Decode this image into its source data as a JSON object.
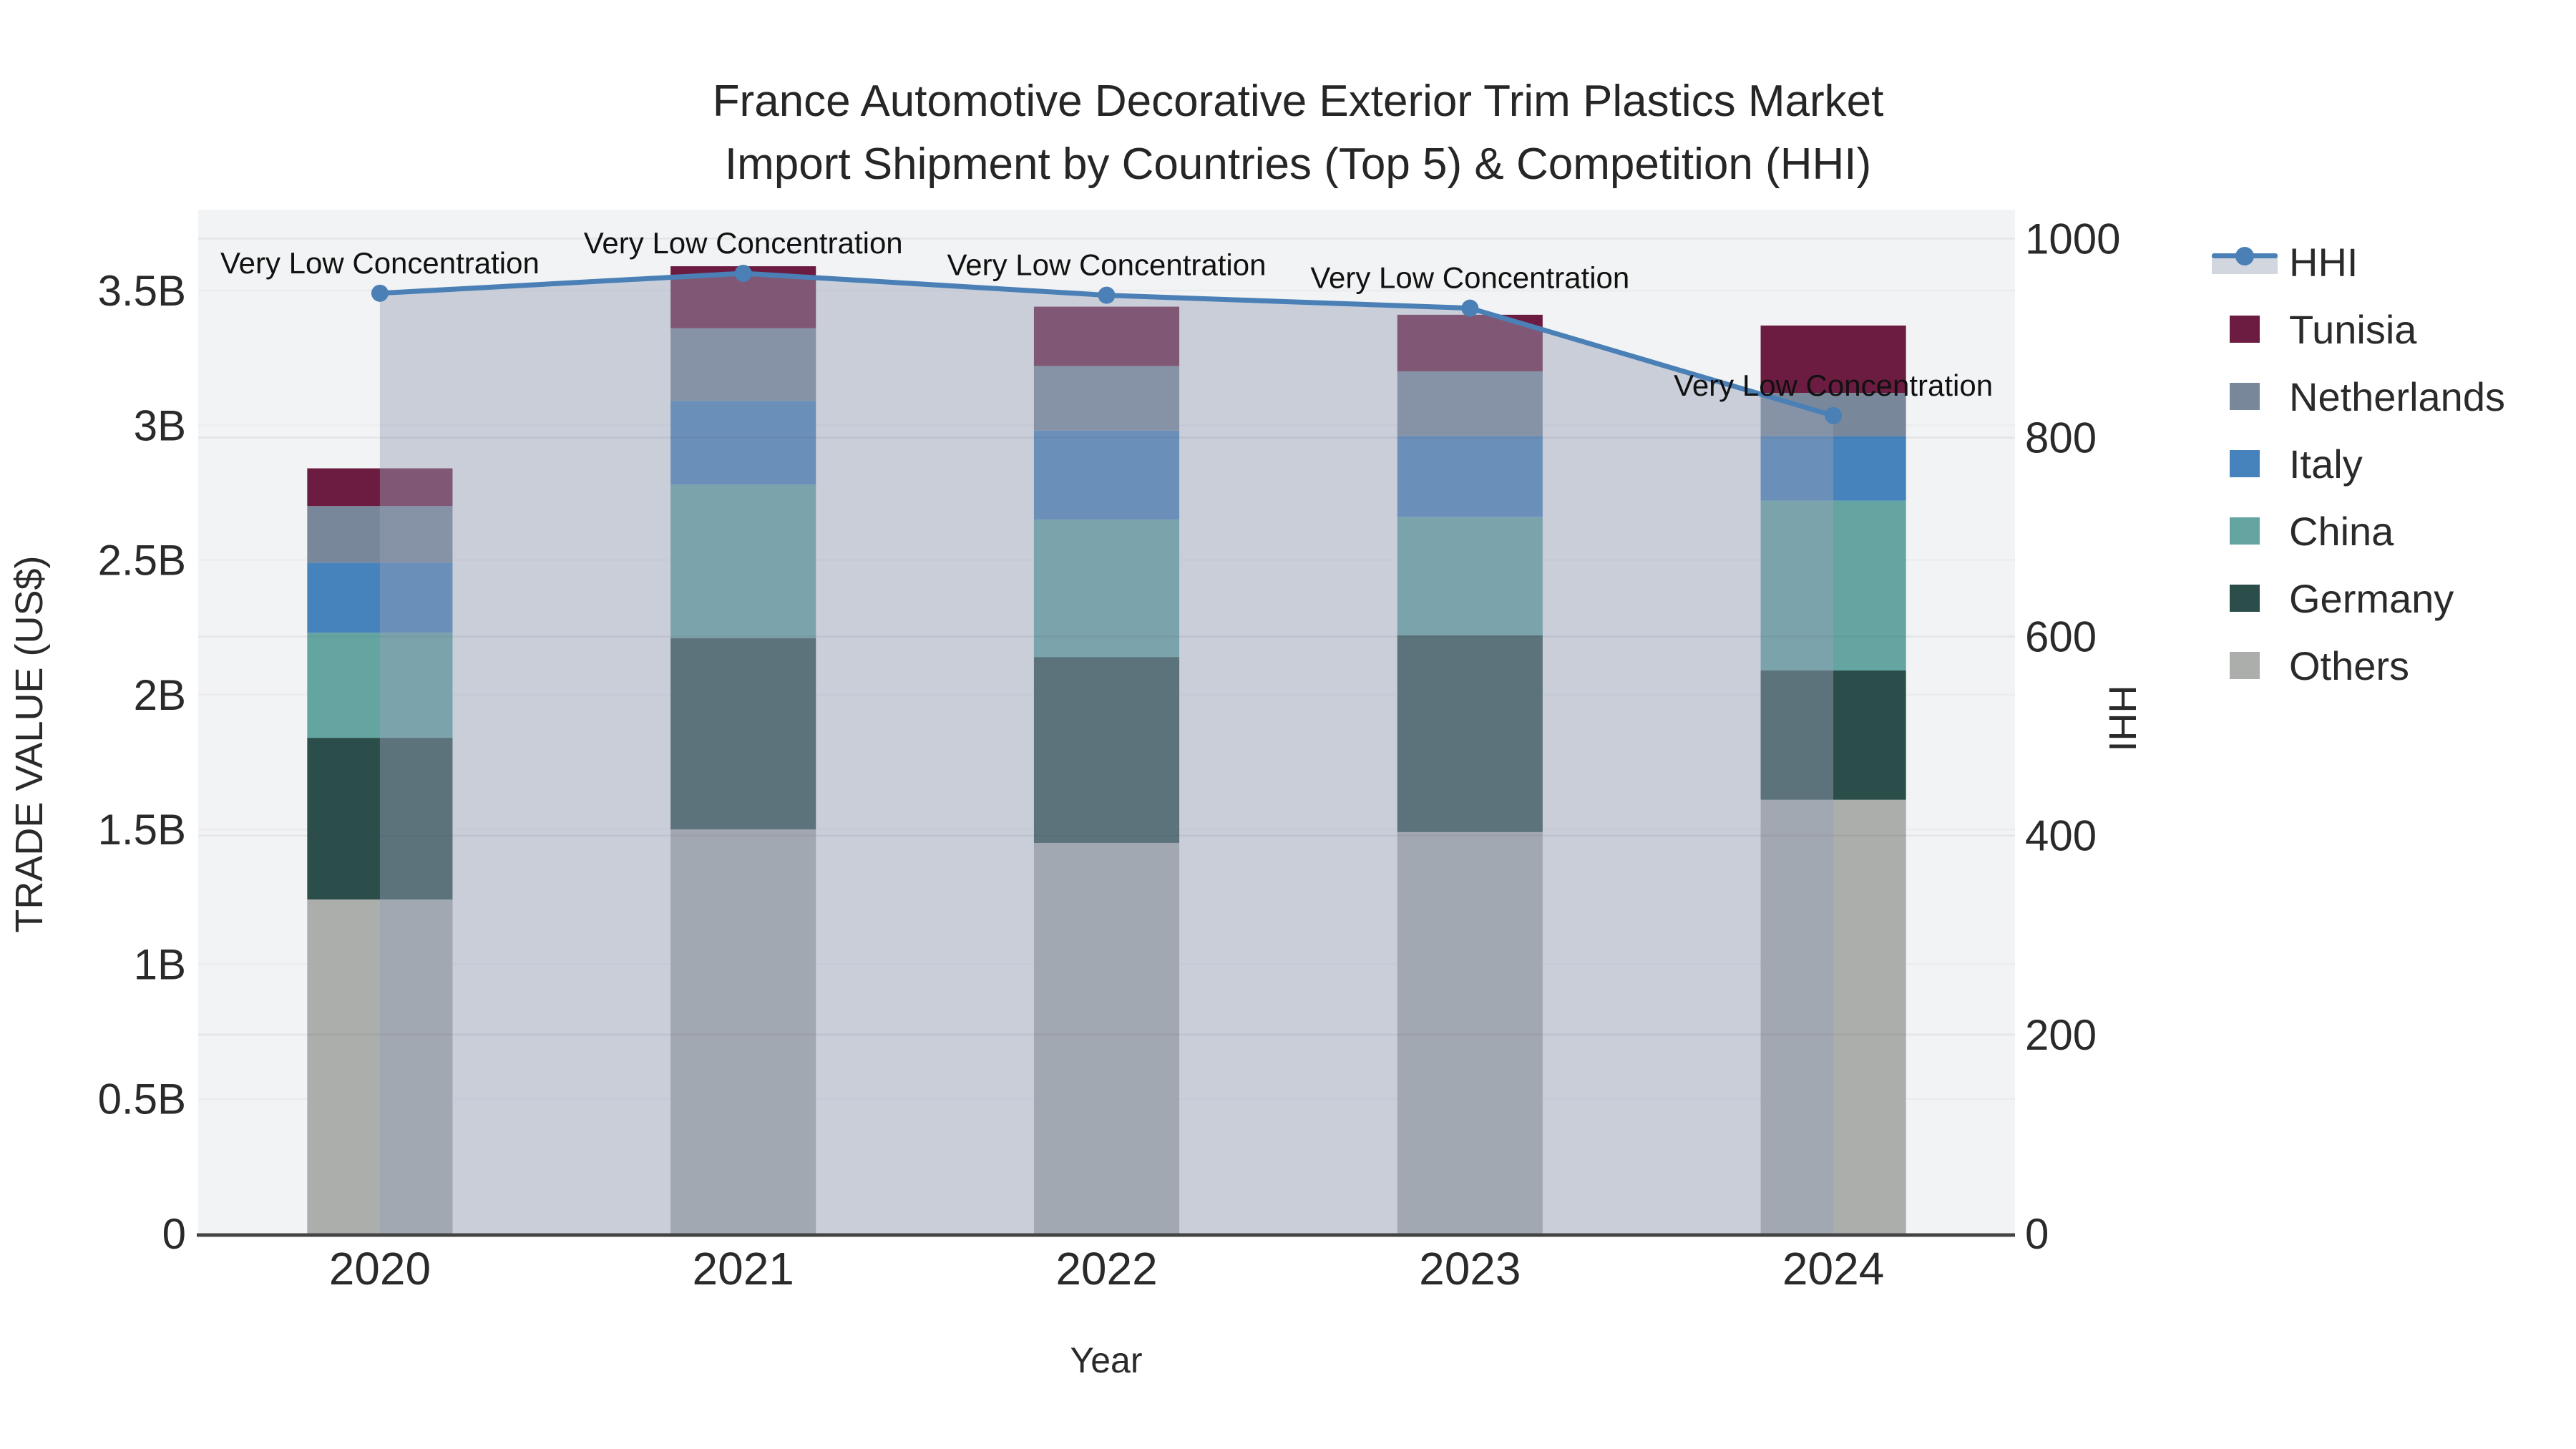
{
  "title": {
    "line1": "France Automotive Decorative Exterior Trim Plastics Market",
    "line2": "Import Shipment by Countries (Top 5) & Competition (HHI)"
  },
  "chart_data": {
    "type": "bar+line",
    "title": "France Automotive Decorative Exterior Trim Plastics Market Import Shipment by Countries (Top 5) & Competition (HHI)",
    "x_axis": {
      "label": "Year",
      "categories": [
        "2020",
        "2021",
        "2022",
        "2023",
        "2024"
      ]
    },
    "y_left": {
      "label": "TRADE VALUE (US$)",
      "unit": "billion US$",
      "max": 3.8,
      "ticks": [
        {
          "v": 0,
          "label": "0"
        },
        {
          "v": 0.5,
          "label": "0.5B"
        },
        {
          "v": 1,
          "label": "1B"
        },
        {
          "v": 1.5,
          "label": "1.5B"
        },
        {
          "v": 2,
          "label": "2B"
        },
        {
          "v": 2.5,
          "label": "2.5B"
        },
        {
          "v": 3,
          "label": "3B"
        },
        {
          "v": 3.5,
          "label": "3.5B"
        }
      ]
    },
    "y_right": {
      "label": "HHI",
      "max": 1029,
      "ticks": [
        {
          "v": 0,
          "label": "0"
        },
        {
          "v": 200,
          "label": "200"
        },
        {
          "v": 400,
          "label": "400"
        },
        {
          "v": 600,
          "label": "600"
        },
        {
          "v": 800,
          "label": "800"
        },
        {
          "v": 1000,
          "label": "1000"
        }
      ]
    },
    "series": [
      {
        "name": "Others",
        "color": "#ACAEAC",
        "values": [
          1.24,
          1.5,
          1.45,
          1.49,
          1.61
        ]
      },
      {
        "name": "Germany",
        "color": "#2C4E4B",
        "values": [
          0.6,
          0.71,
          0.69,
          0.73,
          0.48
        ]
      },
      {
        "name": "China",
        "color": "#64A5A2",
        "values": [
          0.39,
          0.57,
          0.51,
          0.44,
          0.63
        ]
      },
      {
        "name": "Italy",
        "color": "#4682BC",
        "values": [
          0.26,
          0.31,
          0.33,
          0.3,
          0.24
        ]
      },
      {
        "name": "Netherlands",
        "color": "#78889A",
        "values": [
          0.21,
          0.27,
          0.24,
          0.24,
          0.16
        ]
      },
      {
        "name": "Tunisia",
        "color": "#6D1C41",
        "values": [
          0.14,
          0.23,
          0.22,
          0.21,
          0.25
        ]
      }
    ],
    "bar_totals": [
      2.84,
      3.59,
      3.44,
      3.41,
      3.37
    ],
    "line": {
      "name": "HHI",
      "color": "#4A80B6",
      "fill": "rgba(150,162,185,0.45)",
      "legend_fill": "#D2D6DF",
      "values": [
        945,
        965,
        943,
        930,
        822
      ]
    },
    "annotations": {
      "text": "Very Low Concentration"
    },
    "colors": {
      "plot_bg": "#F2F3F4",
      "grid": "#EBECEE",
      "grid_overlay": "rgba(60,65,75,0.08)",
      "axis_line": "#444444",
      "text": "#2A2A2A"
    },
    "layout_hints": {
      "grid": true,
      "legend_position": "right",
      "bar_mode": "stack"
    }
  },
  "legend": {
    "items": [
      {
        "label": "HHI",
        "type": "line"
      },
      {
        "label": "Tunisia",
        "type": "bar",
        "color": "#6D1C41"
      },
      {
        "label": "Netherlands",
        "type": "bar",
        "color": "#78889A"
      },
      {
        "label": "Italy",
        "type": "bar",
        "color": "#4682BC"
      },
      {
        "label": "China",
        "type": "bar",
        "color": "#64A5A2"
      },
      {
        "label": "Germany",
        "type": "bar",
        "color": "#2C4E4B"
      },
      {
        "label": "Others",
        "type": "bar",
        "color": "#ACAEAC"
      }
    ]
  }
}
